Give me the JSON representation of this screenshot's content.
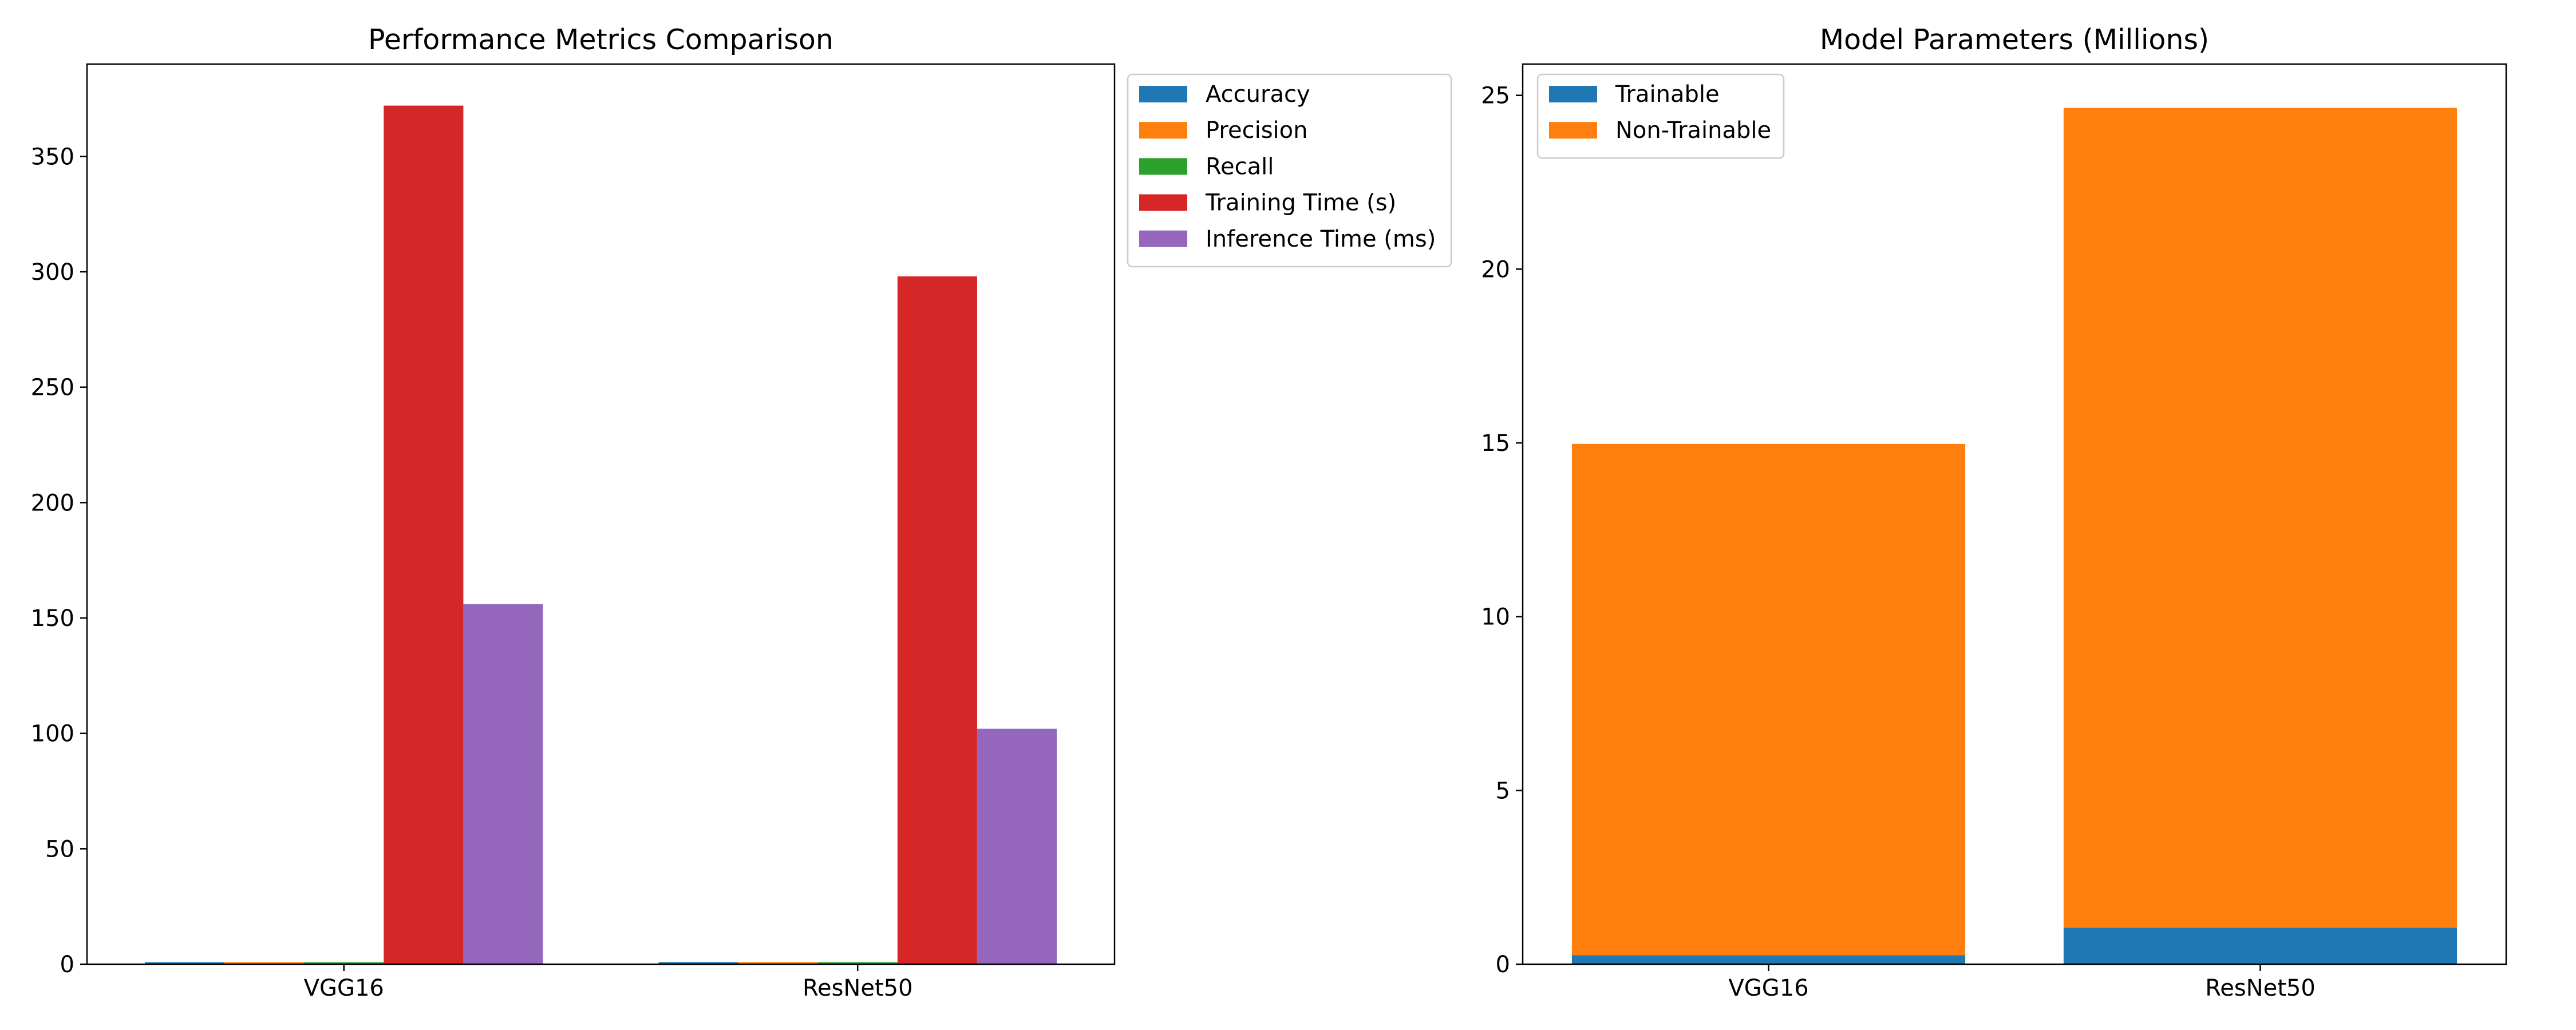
{
  "chart_data": [
    {
      "type": "bar",
      "title": "Performance Metrics Comparison",
      "xlabel": "",
      "ylabel": "",
      "categories": [
        "VGG16",
        "ResNet50"
      ],
      "ylim": [
        0,
        390
      ],
      "yticks": [
        0,
        50,
        100,
        150,
        200,
        250,
        300,
        350
      ],
      "grid": false,
      "legend_position": "outside-top-right",
      "series": [
        {
          "name": "Accuracy",
          "color": "#1f77b4",
          "values": [
            0.88,
            0.9
          ]
        },
        {
          "name": "Precision",
          "color": "#ff7f0e",
          "values": [
            0.87,
            0.89
          ]
        },
        {
          "name": "Recall",
          "color": "#2ca02c",
          "values": [
            0.86,
            0.88
          ]
        },
        {
          "name": "Training Time (s)",
          "color": "#d62728",
          "values": [
            372,
            298
          ]
        },
        {
          "name": "Inference Time (ms)",
          "color": "#9467bd",
          "values": [
            156,
            102
          ]
        }
      ]
    },
    {
      "type": "bar",
      "stacked": true,
      "title": "Model Parameters (Millions)",
      "xlabel": "",
      "ylabel": "",
      "categories": [
        "VGG16",
        "ResNet50"
      ],
      "ylim": [
        0,
        25.9
      ],
      "yticks": [
        0,
        5,
        10,
        15,
        20,
        25
      ],
      "grid": false,
      "legend_position": "top-left",
      "series": [
        {
          "name": "Trainable",
          "color": "#1f77b4",
          "values": [
            0.26,
            1.05
          ]
        },
        {
          "name": "Non-Trainable",
          "color": "#ff7f0e",
          "values": [
            14.71,
            23.59
          ]
        }
      ]
    }
  ]
}
